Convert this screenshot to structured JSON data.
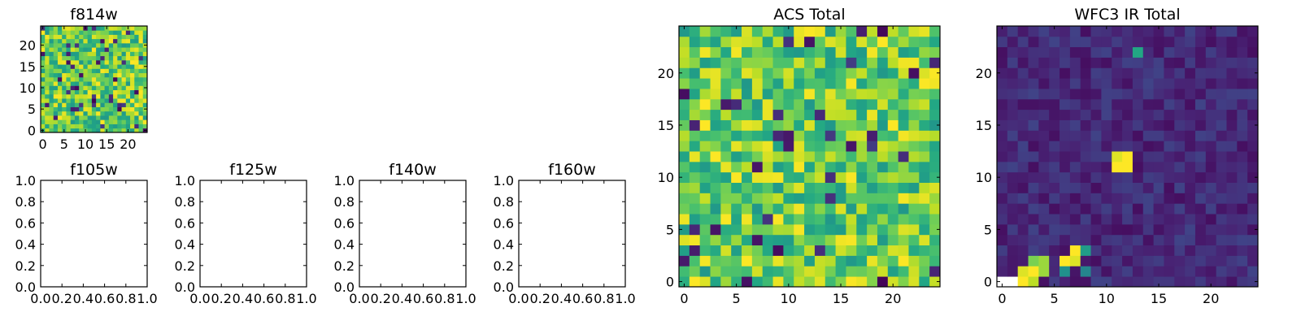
{
  "chart_data": [
    {
      "type": "heatmap",
      "title": "f814w",
      "x_ticks": [
        "0",
        "5",
        "10",
        "15",
        "20"
      ],
      "y_ticks": [
        "0",
        "5",
        "10",
        "15",
        "20"
      ],
      "xlim": [
        -0.5,
        24.5
      ],
      "ylim": [
        -0.5,
        24.5
      ],
      "grid_size": [
        25,
        25
      ],
      "colormap": "viridis",
      "seed": 17
    },
    {
      "type": "empty",
      "title": "f105w",
      "x_ticks": [
        "0.0",
        "0.2",
        "0.4",
        "0.6",
        "0.8",
        "1.0"
      ],
      "y_ticks": [
        "0.0",
        "0.2",
        "0.4",
        "0.6",
        "0.8",
        "1.0"
      ],
      "xlim": [
        0,
        1
      ],
      "ylim": [
        0,
        1
      ]
    },
    {
      "type": "empty",
      "title": "f125w",
      "x_ticks": [
        "0.0",
        "0.2",
        "0.4",
        "0.6",
        "0.8",
        "1.0"
      ],
      "y_ticks": [
        "0.0",
        "0.2",
        "0.4",
        "0.6",
        "0.8",
        "1.0"
      ],
      "xlim": [
        0,
        1
      ],
      "ylim": [
        0,
        1
      ]
    },
    {
      "type": "empty",
      "title": "f140w",
      "x_ticks": [
        "0.0",
        "0.2",
        "0.4",
        "0.6",
        "0.8",
        "1.0"
      ],
      "y_ticks": [
        "0.0",
        "0.2",
        "0.4",
        "0.6",
        "0.8",
        "1.0"
      ],
      "xlim": [
        0,
        1
      ],
      "ylim": [
        0,
        1
      ]
    },
    {
      "type": "empty",
      "title": "f160w",
      "x_ticks": [
        "0.0",
        "0.2",
        "0.4",
        "0.6",
        "0.8",
        "1.0"
      ],
      "y_ticks": [
        "0.0",
        "0.2",
        "0.4",
        "0.6",
        "0.8",
        "1.0"
      ],
      "xlim": [
        0,
        1
      ],
      "ylim": [
        0,
        1
      ]
    },
    {
      "type": "heatmap",
      "title": "ACS Total",
      "x_ticks": [
        "0",
        "5",
        "10",
        "15",
        "20"
      ],
      "y_ticks": [
        "0",
        "5",
        "10",
        "15",
        "20"
      ],
      "xlim": [
        -0.5,
        24.5
      ],
      "ylim": [
        -0.5,
        24.5
      ],
      "grid_size": [
        25,
        25
      ],
      "colormap": "viridis",
      "seed": 41
    },
    {
      "type": "heatmap",
      "title": "WFC3 IR Total",
      "x_ticks": [
        "0",
        "5",
        "10",
        "15",
        "20"
      ],
      "y_ticks": [
        "0",
        "5",
        "10",
        "15",
        "20"
      ],
      "xlim": [
        -0.5,
        24.5
      ],
      "ylim": [
        -0.5,
        24.5
      ],
      "grid_size": [
        25,
        25
      ],
      "colormap": "viridis",
      "seed": 7,
      "bright_pixels": [
        {
          "x": 11,
          "y": 11,
          "value": 1.0
        },
        {
          "x": 12,
          "y": 11,
          "value": 1.0
        },
        {
          "x": 11,
          "y": 12,
          "value": 0.95
        },
        {
          "x": 12,
          "y": 12,
          "value": 1.0
        },
        {
          "x": 13,
          "y": 22,
          "value": 0.6
        },
        {
          "x": 2,
          "y": 0,
          "value": 1.0
        },
        {
          "x": 3,
          "y": 0,
          "value": 0.9
        },
        {
          "x": 2,
          "y": 1,
          "value": 0.95
        },
        {
          "x": 3,
          "y": 1,
          "value": 1.0
        },
        {
          "x": 4,
          "y": 1,
          "value": 0.85
        },
        {
          "x": 3,
          "y": 2,
          "value": 0.8
        },
        {
          "x": 4,
          "y": 2,
          "value": 0.85
        },
        {
          "x": 6,
          "y": 2,
          "value": 1.0
        },
        {
          "x": 7,
          "y": 2,
          "value": 0.95
        },
        {
          "x": 7,
          "y": 3,
          "value": 1.0
        },
        {
          "x": 8,
          "y": 3,
          "value": 0.55
        },
        {
          "x": 6,
          "y": 1,
          "value": 0.5
        },
        {
          "x": 8,
          "y": 1,
          "value": 0.45
        }
      ],
      "blank_pixels": [
        {
          "x": 0,
          "y": 0
        },
        {
          "x": 1,
          "y": 0
        }
      ]
    }
  ]
}
